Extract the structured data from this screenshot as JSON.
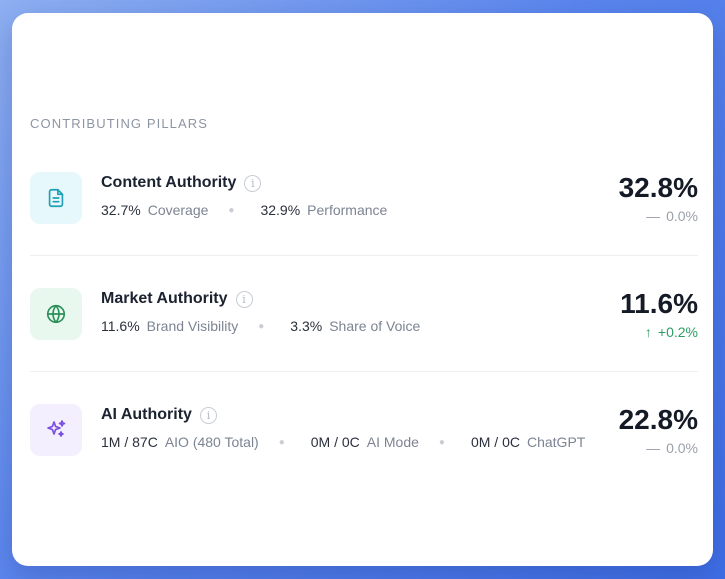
{
  "section": {
    "title": "CONTRIBUTING PILLARS"
  },
  "pillars": [
    {
      "title": "Content Authority",
      "icon": "document-icon",
      "icon_color": "#1e9fb5",
      "metrics": [
        {
          "value": "32.7%",
          "label": "Coverage"
        },
        {
          "value": "32.9%",
          "label": "Performance"
        }
      ],
      "score": "32.8%",
      "delta_symbol": "—",
      "delta": "0.0%",
      "trend": "flat"
    },
    {
      "title": "Market Authority",
      "icon": "globe-icon",
      "icon_color": "#2c8f5a",
      "metrics": [
        {
          "value": "11.6%",
          "label": "Brand Visibility"
        },
        {
          "value": "3.3%",
          "label": "Share of Voice"
        }
      ],
      "score": "11.6%",
      "delta_symbol": "↑",
      "delta": "+0.2%",
      "trend": "up"
    },
    {
      "title": "AI Authority",
      "icon": "sparkles-icon",
      "icon_color": "#7b4fe0",
      "metrics": [
        {
          "value": "1M / 87C",
          "label": "AIO (480 Total)"
        },
        {
          "value": "0M / 0C",
          "label": "AI Mode"
        },
        {
          "value": "0M / 0C",
          "label": "ChatGPT"
        }
      ],
      "score": "22.8%",
      "delta_symbol": "—",
      "delta": "0.0%",
      "trend": "flat"
    }
  ],
  "info_glyph": "i"
}
